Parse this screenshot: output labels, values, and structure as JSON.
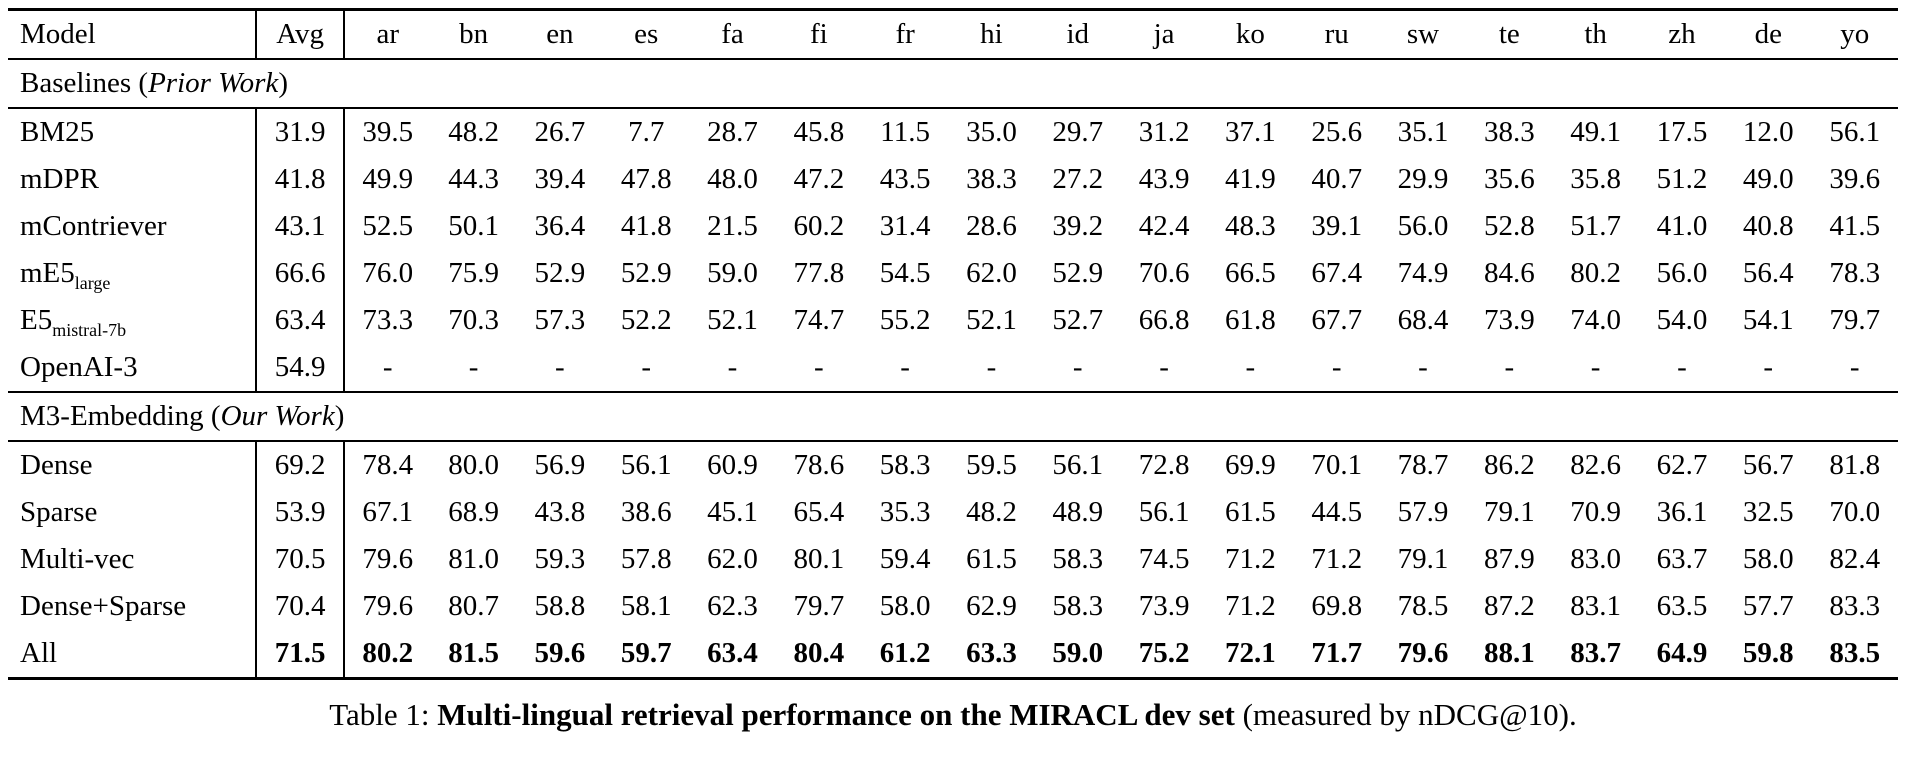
{
  "table": {
    "header": {
      "model_label": "Model",
      "avg_label": "Avg",
      "languages": [
        "ar",
        "bn",
        "en",
        "es",
        "fa",
        "fi",
        "fr",
        "hi",
        "id",
        "ja",
        "ko",
        "ru",
        "sw",
        "te",
        "th",
        "zh",
        "de",
        "yo"
      ]
    },
    "sections": [
      {
        "title": {
          "prefix": "Baselines (",
          "italic": "Prior Work",
          "suffix": ")"
        },
        "rows": [
          {
            "model": "BM25",
            "subscript": "",
            "avg": "31.9",
            "bold": false,
            "values": [
              "39.5",
              "48.2",
              "26.7",
              "7.7",
              "28.7",
              "45.8",
              "11.5",
              "35.0",
              "29.7",
              "31.2",
              "37.1",
              "25.6",
              "35.1",
              "38.3",
              "49.1",
              "17.5",
              "12.0",
              "56.1"
            ]
          },
          {
            "model": "mDPR",
            "subscript": "",
            "avg": "41.8",
            "bold": false,
            "values": [
              "49.9",
              "44.3",
              "39.4",
              "47.8",
              "48.0",
              "47.2",
              "43.5",
              "38.3",
              "27.2",
              "43.9",
              "41.9",
              "40.7",
              "29.9",
              "35.6",
              "35.8",
              "51.2",
              "49.0",
              "39.6"
            ]
          },
          {
            "model": "mContriever",
            "subscript": "",
            "avg": "43.1",
            "bold": false,
            "values": [
              "52.5",
              "50.1",
              "36.4",
              "41.8",
              "21.5",
              "60.2",
              "31.4",
              "28.6",
              "39.2",
              "42.4",
              "48.3",
              "39.1",
              "56.0",
              "52.8",
              "51.7",
              "41.0",
              "40.8",
              "41.5"
            ]
          },
          {
            "model": "mE5",
            "subscript": "large",
            "avg": "66.6",
            "bold": false,
            "values": [
              "76.0",
              "75.9",
              "52.9",
              "52.9",
              "59.0",
              "77.8",
              "54.5",
              "62.0",
              "52.9",
              "70.6",
              "66.5",
              "67.4",
              "74.9",
              "84.6",
              "80.2",
              "56.0",
              "56.4",
              "78.3"
            ]
          },
          {
            "model": "E5",
            "subscript": "mistral-7b",
            "avg": "63.4",
            "bold": false,
            "values": [
              "73.3",
              "70.3",
              "57.3",
              "52.2",
              "52.1",
              "74.7",
              "55.2",
              "52.1",
              "52.7",
              "66.8",
              "61.8",
              "67.7",
              "68.4",
              "73.9",
              "74.0",
              "54.0",
              "54.1",
              "79.7"
            ]
          },
          {
            "model": "OpenAI-3",
            "subscript": "",
            "avg": "54.9",
            "bold": false,
            "values": [
              "-",
              "-",
              "-",
              "-",
              "-",
              "-",
              "-",
              "-",
              "-",
              "-",
              "-",
              "-",
              "-",
              "-",
              "-",
              "-",
              "-",
              "-"
            ]
          }
        ]
      },
      {
        "title": {
          "prefix": "M3-Embedding (",
          "italic": "Our Work",
          "suffix": ")"
        },
        "rows": [
          {
            "model": "Dense",
            "subscript": "",
            "avg": "69.2",
            "bold": false,
            "values": [
              "78.4",
              "80.0",
              "56.9",
              "56.1",
              "60.9",
              "78.6",
              "58.3",
              "59.5",
              "56.1",
              "72.8",
              "69.9",
              "70.1",
              "78.7",
              "86.2",
              "82.6",
              "62.7",
              "56.7",
              "81.8"
            ]
          },
          {
            "model": "Sparse",
            "subscript": "",
            "avg": "53.9",
            "bold": false,
            "values": [
              "67.1",
              "68.9",
              "43.8",
              "38.6",
              "45.1",
              "65.4",
              "35.3",
              "48.2",
              "48.9",
              "56.1",
              "61.5",
              "44.5",
              "57.9",
              "79.1",
              "70.9",
              "36.1",
              "32.5",
              "70.0"
            ]
          },
          {
            "model": "Multi-vec",
            "subscript": "",
            "avg": "70.5",
            "bold": false,
            "values": [
              "79.6",
              "81.0",
              "59.3",
              "57.8",
              "62.0",
              "80.1",
              "59.4",
              "61.5",
              "58.3",
              "74.5",
              "71.2",
              "71.2",
              "79.1",
              "87.9",
              "83.0",
              "63.7",
              "58.0",
              "82.4"
            ]
          },
          {
            "model": "Dense+Sparse",
            "subscript": "",
            "avg": "70.4",
            "bold": false,
            "values": [
              "79.6",
              "80.7",
              "58.8",
              "58.1",
              "62.3",
              "79.7",
              "58.0",
              "62.9",
              "58.3",
              "73.9",
              "71.2",
              "69.8",
              "78.5",
              "87.2",
              "83.1",
              "63.5",
              "57.7",
              "83.3"
            ]
          },
          {
            "model": "All",
            "subscript": "",
            "avg": "71.5",
            "bold": true,
            "values": [
              "80.2",
              "81.5",
              "59.6",
              "59.7",
              "63.4",
              "80.4",
              "61.2",
              "63.3",
              "59.0",
              "75.2",
              "72.1",
              "71.7",
              "79.6",
              "88.1",
              "83.7",
              "64.9",
              "59.8",
              "83.5"
            ]
          }
        ]
      }
    ]
  },
  "caption": {
    "prefix": "Table 1: ",
    "bold": "Multi-lingual retrieval performance on the MIRACL dev set",
    "suffix": " (measured by nDCG@10)."
  }
}
